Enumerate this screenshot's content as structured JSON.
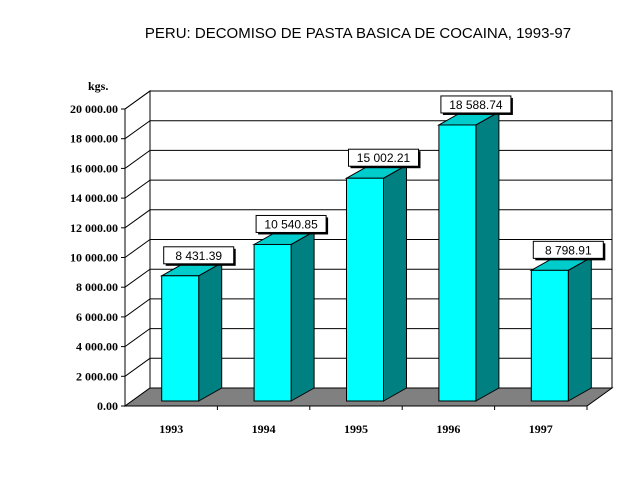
{
  "chart_data": {
    "type": "bar",
    "title": "PERU: DECOMISO DE PASTA BASICA DE COCAINA, 1993-97",
    "ylabel": "kgs.",
    "xlabel": "",
    "categories": [
      "1993",
      "1994",
      "1995",
      "1996",
      "1997"
    ],
    "values": [
      8431.39,
      10540.85,
      15002.21,
      18588.74,
      8798.91
    ],
    "data_labels": [
      "8 431.39",
      "10 540.85",
      "15 002.21",
      "18 588.74",
      "8 798.91"
    ],
    "ylim": [
      0,
      20000
    ],
    "y_ticks": [
      0,
      2000,
      4000,
      6000,
      8000,
      10000,
      12000,
      14000,
      16000,
      18000,
      20000
    ],
    "y_tick_labels": [
      "0.00",
      "2 000.00",
      "4 000.00",
      "6 000.00",
      "8 000.00",
      "10 000.00",
      "12 000.00",
      "14 000.00",
      "16 000.00",
      "18 000.00",
      "20 000.00"
    ],
    "grid": true,
    "style": "3d",
    "colors": {
      "bar_front": "#00ffff",
      "bar_side": "#008080",
      "bar_top": "#00cccc",
      "floor": "#808080",
      "wall": "#ffffff"
    }
  }
}
